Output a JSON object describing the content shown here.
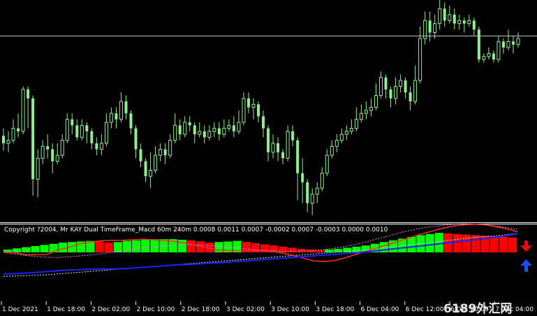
{
  "indicator": {
    "label": "Copyright ?2004, Mr KAY Dual TimeFrame_Macd 60m 240m  0.0008 0.0011 0.0007 -0.0002 0.0007 -0.0003 0.0000 0.0010"
  },
  "watermark": "6189外汇网",
  "time_axis": [
    "1 Dec 2021",
    "1 Dec 18:00",
    "2 Dec 02:00",
    "2 Dec 10:00",
    "2 Dec 18:00",
    "3 Dec 02:00",
    "3 Dec 10:00",
    "3 Dec 18:00",
    "6 Dec 04:00",
    "6 Dec 12:00",
    "6 Dec 20:00",
    "7 Dec 04:00"
  ],
  "colors": {
    "background": "#000000",
    "candle": "#90ee90",
    "bar_up": "#00ff00",
    "bar_down": "#ff0000",
    "macd_line": "#ff3030",
    "signal_line": "#2020ff",
    "dotted_a": "#ff80ff",
    "dotted_b": "#a0ffff",
    "sell_arrow": "#ff0000",
    "buy_arrow": "#1a50ff",
    "price_line": "#c0c0c0"
  },
  "icons": {
    "sell": "down-arrow-icon",
    "buy": "up-arrow-icon"
  },
  "chart_data": [
    {
      "type": "candlestick",
      "candles": [
        [
          0.55,
          0.5,
          0.6,
          0.45
        ],
        [
          0.5,
          0.52,
          0.58,
          0.44
        ],
        [
          0.52,
          0.6,
          0.66,
          0.5
        ],
        [
          0.6,
          0.58,
          0.7,
          0.54
        ],
        [
          0.58,
          0.86,
          0.88,
          0.56
        ],
        [
          0.86,
          0.8,
          0.88,
          0.6
        ],
        [
          0.8,
          0.26,
          0.82,
          0.15
        ],
        [
          0.26,
          0.4,
          0.46,
          0.14
        ],
        [
          0.4,
          0.48,
          0.52,
          0.36
        ],
        [
          0.48,
          0.46,
          0.56,
          0.4
        ],
        [
          0.46,
          0.38,
          0.5,
          0.3
        ],
        [
          0.38,
          0.42,
          0.5,
          0.36
        ],
        [
          0.42,
          0.52,
          0.56,
          0.4
        ],
        [
          0.52,
          0.66,
          0.7,
          0.5
        ],
        [
          0.66,
          0.62,
          0.7,
          0.56
        ],
        [
          0.62,
          0.54,
          0.66,
          0.52
        ],
        [
          0.54,
          0.62,
          0.66,
          0.52
        ],
        [
          0.62,
          0.58,
          0.64,
          0.5
        ],
        [
          0.58,
          0.5,
          0.6,
          0.46
        ],
        [
          0.5,
          0.46,
          0.54,
          0.42
        ],
        [
          0.46,
          0.5,
          0.56,
          0.42
        ],
        [
          0.5,
          0.64,
          0.7,
          0.48
        ],
        [
          0.64,
          0.7,
          0.74,
          0.6
        ],
        [
          0.7,
          0.66,
          0.74,
          0.6
        ],
        [
          0.66,
          0.78,
          0.84,
          0.64
        ],
        [
          0.78,
          0.7,
          0.82,
          0.66
        ],
        [
          0.7,
          0.6,
          0.72,
          0.56
        ],
        [
          0.6,
          0.46,
          0.62,
          0.4
        ],
        [
          0.46,
          0.38,
          0.5,
          0.34
        ],
        [
          0.38,
          0.28,
          0.4,
          0.24
        ],
        [
          0.28,
          0.32,
          0.44,
          0.2
        ],
        [
          0.32,
          0.42,
          0.48,
          0.3
        ],
        [
          0.42,
          0.46,
          0.5,
          0.38
        ],
        [
          0.46,
          0.42,
          0.5,
          0.36
        ],
        [
          0.42,
          0.52,
          0.56,
          0.4
        ],
        [
          0.52,
          0.62,
          0.7,
          0.5
        ],
        [
          0.62,
          0.56,
          0.66,
          0.52
        ],
        [
          0.56,
          0.64,
          0.68,
          0.54
        ],
        [
          0.64,
          0.62,
          0.68,
          0.58
        ],
        [
          0.62,
          0.56,
          0.64,
          0.5
        ],
        [
          0.56,
          0.58,
          0.64,
          0.54
        ],
        [
          0.58,
          0.54,
          0.62,
          0.5
        ],
        [
          0.54,
          0.58,
          0.62,
          0.52
        ],
        [
          0.58,
          0.6,
          0.64,
          0.54
        ],
        [
          0.6,
          0.56,
          0.64,
          0.52
        ],
        [
          0.56,
          0.6,
          0.66,
          0.54
        ],
        [
          0.6,
          0.62,
          0.66,
          0.58
        ],
        [
          0.62,
          0.58,
          0.68,
          0.54
        ],
        [
          0.58,
          0.64,
          0.72,
          0.56
        ],
        [
          0.64,
          0.8,
          0.84,
          0.62
        ],
        [
          0.8,
          0.74,
          0.84,
          0.7
        ],
        [
          0.74,
          0.76,
          0.8,
          0.66
        ],
        [
          0.76,
          0.68,
          0.78,
          0.64
        ],
        [
          0.68,
          0.6,
          0.72,
          0.54
        ],
        [
          0.6,
          0.44,
          0.62,
          0.38
        ],
        [
          0.44,
          0.5,
          0.56,
          0.4
        ],
        [
          0.5,
          0.44,
          0.54,
          0.38
        ],
        [
          0.44,
          0.4,
          0.46,
          0.36
        ],
        [
          0.4,
          0.58,
          0.62,
          0.38
        ],
        [
          0.58,
          0.52,
          0.62,
          0.48
        ],
        [
          0.52,
          0.3,
          0.54,
          0.12
        ],
        [
          0.3,
          0.24,
          0.4,
          0.1
        ],
        [
          0.24,
          0.1,
          0.26,
          0.04
        ],
        [
          0.1,
          0.16,
          0.2,
          0.02
        ],
        [
          0.16,
          0.2,
          0.24,
          0.1
        ],
        [
          0.2,
          0.3,
          0.34,
          0.18
        ],
        [
          0.3,
          0.42,
          0.46,
          0.28
        ],
        [
          0.42,
          0.48,
          0.52,
          0.4
        ],
        [
          0.48,
          0.52,
          0.56,
          0.44
        ],
        [
          0.52,
          0.56,
          0.6,
          0.5
        ],
        [
          0.56,
          0.58,
          0.62,
          0.52
        ],
        [
          0.58,
          0.6,
          0.66,
          0.56
        ],
        [
          0.6,
          0.66,
          0.74,
          0.58
        ],
        [
          0.66,
          0.7,
          0.76,
          0.64
        ],
        [
          0.7,
          0.72,
          0.78,
          0.66
        ],
        [
          0.72,
          0.74,
          0.8,
          0.68
        ],
        [
          0.74,
          0.82,
          0.9,
          0.72
        ],
        [
          0.82,
          0.94,
          0.98,
          0.8
        ],
        [
          0.94,
          0.86,
          0.96,
          0.8
        ],
        [
          0.86,
          0.8,
          0.88,
          0.74
        ],
        [
          0.8,
          0.88,
          0.94,
          0.76
        ],
        [
          0.88,
          0.92,
          0.96,
          0.84
        ],
        [
          0.92,
          0.84,
          0.94,
          0.8
        ],
        [
          0.84,
          0.78,
          0.88,
          0.72
        ],
        [
          0.78,
          0.92,
          1.02,
          0.76
        ],
        [
          0.92,
          1.2,
          1.28,
          0.9
        ],
        [
          1.2,
          1.32,
          1.38,
          1.16
        ],
        [
          1.32,
          1.24,
          1.38,
          1.18
        ],
        [
          1.24,
          1.3,
          1.36,
          1.2
        ],
        [
          1.3,
          1.4,
          1.46,
          1.26
        ],
        [
          1.4,
          1.32,
          1.44,
          1.28
        ],
        [
          1.32,
          1.36,
          1.42,
          1.3
        ],
        [
          1.36,
          1.3,
          1.4,
          1.26
        ],
        [
          1.3,
          1.32,
          1.36,
          1.26
        ],
        [
          1.32,
          1.3,
          1.34,
          1.24
        ],
        [
          1.3,
          1.32,
          1.36,
          1.28
        ],
        [
          1.32,
          1.26,
          1.34,
          1.22
        ],
        [
          1.26,
          1.06,
          1.28,
          1.04
        ],
        [
          1.06,
          1.08,
          1.1,
          1.04
        ],
        [
          1.08,
          1.1,
          1.14,
          1.06
        ],
        [
          1.1,
          1.06,
          1.12,
          1.04
        ],
        [
          1.06,
          1.18,
          1.22,
          1.04
        ],
        [
          1.18,
          1.14,
          1.2,
          1.1
        ],
        [
          1.14,
          1.18,
          1.26,
          1.12
        ],
        [
          1.18,
          1.16,
          1.22,
          1.1
        ],
        [
          1.16,
          1.2,
          1.24,
          1.14
        ]
      ],
      "price_level": 1.22
    },
    {
      "type": "bar",
      "macd_bars": [
        [
          1,
          0.5
        ],
        [
          1,
          0.7
        ],
        [
          1,
          0.9
        ],
        [
          1,
          1.1
        ],
        [
          1,
          1.3
        ],
        [
          1,
          1.5
        ],
        [
          1,
          1.7
        ],
        [
          1,
          1.8
        ],
        [
          1,
          1.9
        ],
        [
          1,
          2.0
        ],
        [
          0,
          1.9
        ],
        [
          0,
          1.7
        ],
        [
          1,
          1.8
        ],
        [
          1,
          2.0
        ],
        [
          1,
          2.1
        ],
        [
          1,
          2.2
        ],
        [
          1,
          2.3
        ],
        [
          1,
          2.3
        ],
        [
          1,
          2.3
        ],
        [
          1,
          2.2
        ],
        [
          0,
          2.1
        ],
        [
          0,
          1.9
        ],
        [
          0,
          1.7
        ],
        [
          1,
          1.8
        ],
        [
          1,
          1.9
        ],
        [
          1,
          2.0
        ],
        [
          0,
          1.8
        ],
        [
          0,
          1.6
        ],
        [
          0,
          1.4
        ],
        [
          0,
          1.2
        ],
        [
          0,
          1.0
        ],
        [
          0,
          0.8
        ],
        [
          0,
          0.6
        ],
        [
          0,
          0.5
        ],
        [
          0,
          0.4
        ],
        [
          1,
          0.5
        ],
        [
          1,
          0.6
        ],
        [
          1,
          0.8
        ],
        [
          1,
          1.0
        ],
        [
          1,
          1.2
        ],
        [
          1,
          1.5
        ],
        [
          1,
          1.8
        ],
        [
          1,
          2.1
        ],
        [
          1,
          2.4
        ],
        [
          1,
          2.7
        ],
        [
          1,
          3.0
        ],
        [
          1,
          3.2
        ],
        [
          1,
          3.4
        ],
        [
          0,
          3.3
        ],
        [
          0,
          3.2
        ],
        [
          0,
          3.1
        ],
        [
          0,
          3.0
        ],
        [
          0,
          2.9
        ],
        [
          0,
          2.8
        ],
        [
          0,
          2.7
        ],
        [
          0,
          2.6
        ]
      ],
      "macd_line": [
        0,
        0,
        -0.4,
        -0.4,
        -0.4,
        0.4,
        0.8,
        1.4,
        1.8,
        2.0,
        2.1,
        2.1,
        2.2,
        2.3,
        2.2,
        2.1,
        1.9,
        1.6,
        1.2,
        0.8,
        0.4,
        0.3,
        0.3,
        0.3,
        0.3,
        0.2,
        -0.1,
        -0.5,
        -1.0,
        -1.5,
        -1.6,
        -1.4,
        -0.9,
        -0.3,
        0.3,
        0.8,
        1.4,
        2.0,
        2.6,
        3.2,
        3.7,
        4.2,
        4.6,
        4.8,
        4.9,
        4.8,
        4.5,
        4.1,
        3.6
      ],
      "signal_line": [
        -3.8,
        -3.7,
        -3.5,
        -3.3,
        -3.1,
        -3.0,
        -2.9,
        -2.9,
        -2.8,
        -2.6,
        -2.4,
        -2.2,
        -2.1,
        -1.9,
        -1.8,
        -1.6,
        -1.4,
        -1.2,
        -1.0,
        -0.8,
        -0.6,
        -0.4,
        -0.2,
        0.0,
        0.3,
        0.6,
        0.9,
        1.2,
        1.5,
        1.8,
        2.1,
        2.4,
        2.8,
        3.2
      ],
      "dotted_a": [
        0,
        -0.3,
        -0.6,
        -0.8,
        -0.9,
        -0.8,
        -0.6,
        -0.4,
        -0.1,
        0.2,
        0.5,
        0.8,
        1.0,
        1.2,
        1.3,
        1.3,
        1.2,
        1.0,
        0.8,
        0.6,
        0.4,
        0.3,
        0.2,
        0.2,
        0.3,
        0.5,
        0.8,
        1.2,
        1.7,
        2.3,
        2.9,
        3.5,
        4.0,
        4.4,
        4.7,
        4.9,
        5.0,
        4.9,
        4.7,
        4.4,
        4.0
      ],
      "dotted_b": [
        -4.2,
        -4.1,
        -4.0,
        -3.9,
        -3.7,
        -3.5,
        -3.3,
        -3.1,
        -2.9,
        -2.7,
        -2.5,
        -2.3,
        -2.1,
        -1.9,
        -1.7,
        -1.5,
        -1.3,
        -1.1,
        -0.9,
        -0.7,
        -0.5,
        -0.3,
        -0.1,
        0.1,
        0.3,
        0.5,
        0.8,
        1.1,
        1.4,
        1.7,
        2.0,
        2.3,
        2.6,
        2.8,
        3.0,
        3.3
      ]
    }
  ]
}
